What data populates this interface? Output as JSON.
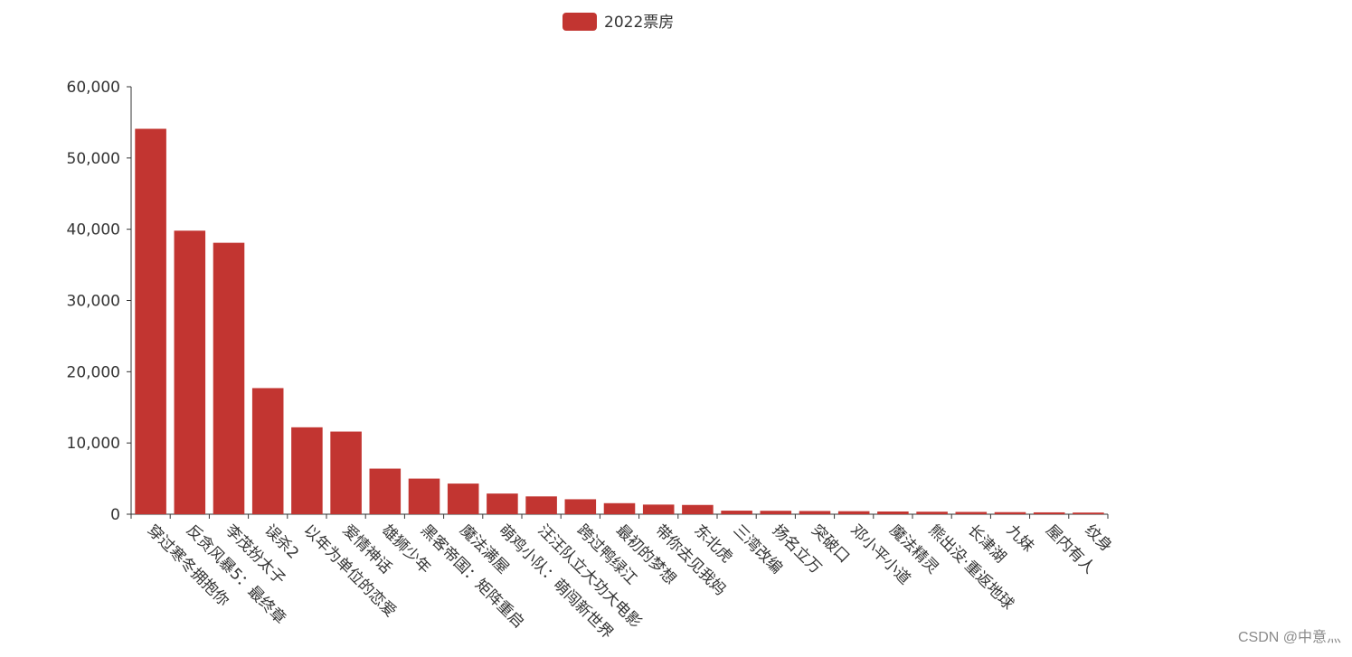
{
  "watermark": "CSDN @中意灬",
  "colors": {
    "bar": "#c23531",
    "axis": "#333333",
    "text": "#333333"
  },
  "chart_data": {
    "type": "bar",
    "title": "",
    "xlabel": "",
    "ylabel": "",
    "legend": {
      "position": "top-center"
    },
    "grid": false,
    "ylim": [
      0,
      60000
    ],
    "yticks": [
      0,
      10000,
      20000,
      30000,
      40000,
      50000,
      60000
    ],
    "categories": [
      "穿过寒冬拥抱你",
      "反贪风暴5：最终章",
      "李茂扮太子",
      "误杀2",
      "以年为单位的恋爱",
      "爱情神话",
      "雄狮少年",
      "黑客帝国：矩阵重启",
      "魔法满屋",
      "萌鸡小队：萌闯新世界",
      "汪汪队立大功大电影",
      "跨过鸭绿江",
      "最初的梦想",
      "带你去见我妈",
      "东北虎",
      "三湾改编",
      "扬名立万",
      "突破口",
      "邓小平小道",
      "魔法精灵",
      "熊出没·重返地球",
      "长津湖",
      "九妹",
      "屋内有人",
      "纹身"
    ],
    "series": [
      {
        "name": "2022票房",
        "values": [
          54100,
          39800,
          38100,
          17700,
          12200,
          11600,
          6400,
          5000,
          4300,
          2900,
          2500,
          2100,
          1550,
          1350,
          1300,
          500,
          480,
          450,
          420,
          380,
          350,
          320,
          290,
          260,
          230
        ]
      }
    ]
  }
}
